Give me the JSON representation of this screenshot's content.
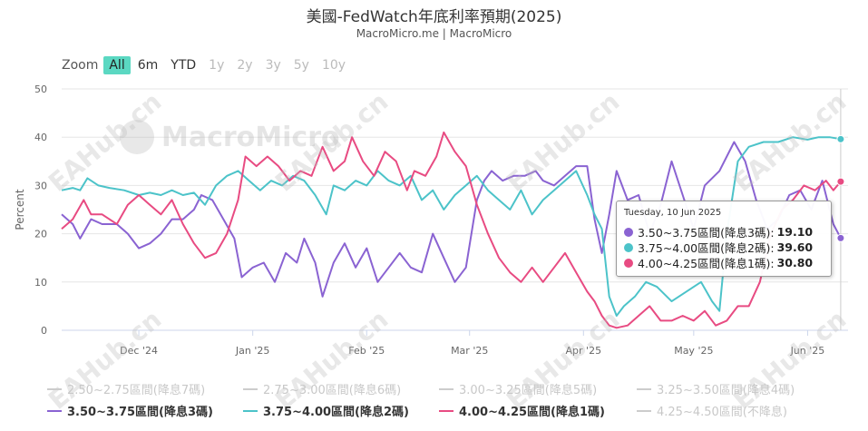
{
  "title": "美國-FedWatch年底利率預期(2025)",
  "subtitle": "MacroMicro.me | MacroMicro",
  "zoom": {
    "label": "Zoom",
    "buttons": [
      {
        "label": "All",
        "state": "active"
      },
      {
        "label": "6m",
        "state": "enabled"
      },
      {
        "label": "YTD",
        "state": "enabled"
      },
      {
        "label": "1y",
        "state": "disabled"
      },
      {
        "label": "2y",
        "state": "disabled"
      },
      {
        "label": "3y",
        "state": "disabled"
      },
      {
        "label": "5y",
        "state": "disabled"
      },
      {
        "label": "10y",
        "state": "disabled"
      }
    ]
  },
  "watermark": {
    "text": "EAHub.cn",
    "logo_text": "MacroMicro"
  },
  "tooltip": {
    "date": "Tuesday, 10 Jun 2025",
    "rows": [
      {
        "label": "3.50~3.75區間(降息3碼):",
        "value": "19.10",
        "color": "#8a63d2"
      },
      {
        "label": "3.75~4.00區間(降息2碼):",
        "value": "39.60",
        "color": "#4cc3c9"
      },
      {
        "label": "4.00~4.25區間(降息1碼):",
        "value": "30.80",
        "color": "#e84b82"
      }
    ]
  },
  "legend": [
    {
      "label": "2.50~2.75區間(降息7碼)",
      "visible": false,
      "color": "#cccccc"
    },
    {
      "label": "2.75~3.00區間(降息6碼)",
      "visible": false,
      "color": "#cccccc"
    },
    {
      "label": "3.00~3.25區間(降息5碼)",
      "visible": false,
      "color": "#cccccc"
    },
    {
      "label": "3.25~3.50區間(降息4碼)",
      "visible": false,
      "color": "#cccccc"
    },
    {
      "label": "3.50~3.75區間(降息3碼)",
      "visible": true,
      "color": "#8a63d2"
    },
    {
      "label": "3.75~4.00區間(降息2碼)",
      "visible": true,
      "color": "#4cc3c9"
    },
    {
      "label": "4.00~4.25區間(降息1碼)",
      "visible": true,
      "color": "#e84b82"
    },
    {
      "label": "4.25~4.50區間(不降息)",
      "visible": false,
      "color": "#cccccc"
    }
  ],
  "chart_data": {
    "type": "line",
    "ylabel": "Percent",
    "ylim": [
      0,
      50
    ],
    "yticks": [
      0,
      10,
      20,
      30,
      40,
      50
    ],
    "xlim": [
      "2024-11-10",
      "2025-06-12"
    ],
    "xticks": [
      {
        "date": "2024-12-01",
        "label": "Dec '24"
      },
      {
        "date": "2025-01-01",
        "label": "Jan '25"
      },
      {
        "date": "2025-02-01",
        "label": "Feb '25"
      },
      {
        "date": "2025-03-01",
        "label": "Mar '25"
      },
      {
        "date": "2025-04-01",
        "label": "Apr '25"
      },
      {
        "date": "2025-05-01",
        "label": "May '25"
      },
      {
        "date": "2025-06-01",
        "label": "Jun '25"
      }
    ],
    "grid": true,
    "series": [
      {
        "name": "3.50~3.75區間(降息3碼)",
        "color": "#8a63d2",
        "points": [
          [
            "2024-11-10",
            24
          ],
          [
            "2024-11-13",
            22
          ],
          [
            "2024-11-15",
            19
          ],
          [
            "2024-11-18",
            23
          ],
          [
            "2024-11-21",
            22
          ],
          [
            "2024-11-25",
            22
          ],
          [
            "2024-11-28",
            20
          ],
          [
            "2024-12-01",
            17
          ],
          [
            "2024-12-04",
            18
          ],
          [
            "2024-12-07",
            20
          ],
          [
            "2024-12-10",
            23
          ],
          [
            "2024-12-13",
            23
          ],
          [
            "2024-12-16",
            25
          ],
          [
            "2024-12-18",
            28
          ],
          [
            "2024-12-21",
            27
          ],
          [
            "2024-12-24",
            23
          ],
          [
            "2024-12-27",
            19
          ],
          [
            "2024-12-29",
            11
          ],
          [
            "2025-01-01",
            13
          ],
          [
            "2025-01-04",
            14
          ],
          [
            "2025-01-07",
            10
          ],
          [
            "2025-01-10",
            16
          ],
          [
            "2025-01-13",
            14
          ],
          [
            "2025-01-15",
            19
          ],
          [
            "2025-01-18",
            14
          ],
          [
            "2025-01-20",
            7
          ],
          [
            "2025-01-23",
            14
          ],
          [
            "2025-01-26",
            18
          ],
          [
            "2025-01-29",
            13
          ],
          [
            "2025-02-01",
            17
          ],
          [
            "2025-02-04",
            10
          ],
          [
            "2025-02-07",
            13
          ],
          [
            "2025-02-10",
            16
          ],
          [
            "2025-02-13",
            13
          ],
          [
            "2025-02-16",
            12
          ],
          [
            "2025-02-19",
            20
          ],
          [
            "2025-02-22",
            15
          ],
          [
            "2025-02-25",
            10
          ],
          [
            "2025-02-28",
            13
          ],
          [
            "2025-03-03",
            27
          ],
          [
            "2025-03-05",
            31
          ],
          [
            "2025-03-07",
            33
          ],
          [
            "2025-03-10",
            31
          ],
          [
            "2025-03-13",
            32
          ],
          [
            "2025-03-16",
            32
          ],
          [
            "2025-03-19",
            33
          ],
          [
            "2025-03-21",
            31
          ],
          [
            "2025-03-24",
            30
          ],
          [
            "2025-03-27",
            32
          ],
          [
            "2025-03-30",
            34
          ],
          [
            "2025-04-02",
            34
          ],
          [
            "2025-04-04",
            23
          ],
          [
            "2025-04-06",
            16
          ],
          [
            "2025-04-08",
            24
          ],
          [
            "2025-04-10",
            33
          ],
          [
            "2025-04-13",
            27
          ],
          [
            "2025-04-16",
            28
          ],
          [
            "2025-04-19",
            20
          ],
          [
            "2025-04-22",
            26
          ],
          [
            "2025-04-25",
            35
          ],
          [
            "2025-04-28",
            28
          ],
          [
            "2025-05-01",
            21
          ],
          [
            "2025-05-04",
            30
          ],
          [
            "2025-05-08",
            33
          ],
          [
            "2025-05-12",
            39
          ],
          [
            "2025-05-15",
            35
          ],
          [
            "2025-05-18",
            27
          ],
          [
            "2025-05-21",
            21
          ],
          [
            "2025-05-24",
            23
          ],
          [
            "2025-05-27",
            28
          ],
          [
            "2025-05-30",
            29
          ],
          [
            "2025-06-02",
            25
          ],
          [
            "2025-06-05",
            31
          ],
          [
            "2025-06-08",
            22
          ],
          [
            "2025-06-10",
            19.1
          ]
        ]
      },
      {
        "name": "3.75~4.00區間(降息2碼)",
        "color": "#4cc3c9",
        "points": [
          [
            "2024-11-10",
            29
          ],
          [
            "2024-11-13",
            29.5
          ],
          [
            "2024-11-15",
            29
          ],
          [
            "2024-11-17",
            31.5
          ],
          [
            "2024-11-20",
            30
          ],
          [
            "2024-11-23",
            29.5
          ],
          [
            "2024-11-27",
            29
          ],
          [
            "2024-12-01",
            28
          ],
          [
            "2024-12-04",
            28.5
          ],
          [
            "2024-12-07",
            28
          ],
          [
            "2024-12-10",
            29
          ],
          [
            "2024-12-13",
            28
          ],
          [
            "2024-12-16",
            28.5
          ],
          [
            "2024-12-19",
            26
          ],
          [
            "2024-12-22",
            30
          ],
          [
            "2024-12-25",
            32
          ],
          [
            "2024-12-28",
            33
          ],
          [
            "2024-12-31",
            31
          ],
          [
            "2025-01-03",
            29
          ],
          [
            "2025-01-06",
            31
          ],
          [
            "2025-01-09",
            30
          ],
          [
            "2025-01-12",
            32
          ],
          [
            "2025-01-15",
            31
          ],
          [
            "2025-01-18",
            28
          ],
          [
            "2025-01-21",
            24
          ],
          [
            "2025-01-23",
            30
          ],
          [
            "2025-01-26",
            29
          ],
          [
            "2025-01-29",
            31
          ],
          [
            "2025-02-01",
            30
          ],
          [
            "2025-02-04",
            33
          ],
          [
            "2025-02-07",
            31
          ],
          [
            "2025-02-10",
            30
          ],
          [
            "2025-02-13",
            32
          ],
          [
            "2025-02-16",
            27
          ],
          [
            "2025-02-19",
            29
          ],
          [
            "2025-02-22",
            25
          ],
          [
            "2025-02-25",
            28
          ],
          [
            "2025-02-28",
            30
          ],
          [
            "2025-03-03",
            32
          ],
          [
            "2025-03-06",
            29
          ],
          [
            "2025-03-09",
            27
          ],
          [
            "2025-03-12",
            25
          ],
          [
            "2025-03-15",
            29
          ],
          [
            "2025-03-18",
            24
          ],
          [
            "2025-03-21",
            27
          ],
          [
            "2025-03-24",
            29
          ],
          [
            "2025-03-27",
            31
          ],
          [
            "2025-03-30",
            33
          ],
          [
            "2025-04-02",
            28
          ],
          [
            "2025-04-04",
            24
          ],
          [
            "2025-04-06",
            21
          ],
          [
            "2025-04-08",
            7
          ],
          [
            "2025-04-10",
            3
          ],
          [
            "2025-04-12",
            5
          ],
          [
            "2025-04-15",
            7
          ],
          [
            "2025-04-18",
            10
          ],
          [
            "2025-04-21",
            9
          ],
          [
            "2025-04-25",
            6
          ],
          [
            "2025-04-29",
            8
          ],
          [
            "2025-05-03",
            10
          ],
          [
            "2025-05-06",
            6
          ],
          [
            "2025-05-08",
            4
          ],
          [
            "2025-05-10",
            20
          ],
          [
            "2025-05-13",
            35
          ],
          [
            "2025-05-16",
            38
          ],
          [
            "2025-05-20",
            39
          ],
          [
            "2025-05-24",
            39
          ],
          [
            "2025-05-28",
            40
          ],
          [
            "2025-06-01",
            39.5
          ],
          [
            "2025-06-04",
            40
          ],
          [
            "2025-06-07",
            40
          ],
          [
            "2025-06-10",
            39.6
          ]
        ]
      },
      {
        "name": "4.00~4.25區間(降息1碼)",
        "color": "#e84b82",
        "points": [
          [
            "2024-11-10",
            21
          ],
          [
            "2024-11-13",
            23
          ],
          [
            "2024-11-16",
            27
          ],
          [
            "2024-11-18",
            24
          ],
          [
            "2024-11-21",
            24
          ],
          [
            "2024-11-25",
            22
          ],
          [
            "2024-11-28",
            26
          ],
          [
            "2024-12-01",
            28
          ],
          [
            "2024-12-04",
            26
          ],
          [
            "2024-12-07",
            24
          ],
          [
            "2024-12-10",
            27
          ],
          [
            "2024-12-13",
            22
          ],
          [
            "2024-12-16",
            18
          ],
          [
            "2024-12-19",
            15
          ],
          [
            "2024-12-22",
            16
          ],
          [
            "2024-12-25",
            20
          ],
          [
            "2024-12-28",
            27
          ],
          [
            "2024-12-30",
            36
          ],
          [
            "2025-01-02",
            34
          ],
          [
            "2025-01-05",
            36
          ],
          [
            "2025-01-08",
            34
          ],
          [
            "2025-01-11",
            31
          ],
          [
            "2025-01-14",
            33
          ],
          [
            "2025-01-17",
            32
          ],
          [
            "2025-01-20",
            38
          ],
          [
            "2025-01-23",
            33
          ],
          [
            "2025-01-26",
            35
          ],
          [
            "2025-01-28",
            40
          ],
          [
            "2025-01-31",
            35
          ],
          [
            "2025-02-03",
            32
          ],
          [
            "2025-02-06",
            37
          ],
          [
            "2025-02-09",
            35
          ],
          [
            "2025-02-12",
            29
          ],
          [
            "2025-02-14",
            33
          ],
          [
            "2025-02-17",
            32
          ],
          [
            "2025-02-20",
            36
          ],
          [
            "2025-02-22",
            41
          ],
          [
            "2025-02-25",
            37
          ],
          [
            "2025-02-28",
            34
          ],
          [
            "2025-03-03",
            26
          ],
          [
            "2025-03-06",
            20
          ],
          [
            "2025-03-09",
            15
          ],
          [
            "2025-03-12",
            12
          ],
          [
            "2025-03-15",
            10
          ],
          [
            "2025-03-18",
            13
          ],
          [
            "2025-03-21",
            10
          ],
          [
            "2025-03-24",
            13
          ],
          [
            "2025-03-27",
            16
          ],
          [
            "2025-03-30",
            12
          ],
          [
            "2025-04-02",
            8
          ],
          [
            "2025-04-04",
            6
          ],
          [
            "2025-04-06",
            3
          ],
          [
            "2025-04-08",
            1
          ],
          [
            "2025-04-10",
            0.5
          ],
          [
            "2025-04-13",
            1
          ],
          [
            "2025-04-16",
            3
          ],
          [
            "2025-04-19",
            5
          ],
          [
            "2025-04-22",
            2
          ],
          [
            "2025-04-25",
            2
          ],
          [
            "2025-04-28",
            3
          ],
          [
            "2025-05-01",
            2
          ],
          [
            "2025-05-04",
            4
          ],
          [
            "2025-05-07",
            1
          ],
          [
            "2025-05-10",
            2
          ],
          [
            "2025-05-13",
            5
          ],
          [
            "2025-05-16",
            5
          ],
          [
            "2025-05-19",
            10
          ],
          [
            "2025-05-22",
            20
          ],
          [
            "2025-05-25",
            25
          ],
          [
            "2025-05-28",
            27
          ],
          [
            "2025-05-31",
            30
          ],
          [
            "2025-06-03",
            29
          ],
          [
            "2025-06-06",
            31
          ],
          [
            "2025-06-08",
            29
          ],
          [
            "2025-06-10",
            30.8
          ]
        ]
      }
    ]
  }
}
